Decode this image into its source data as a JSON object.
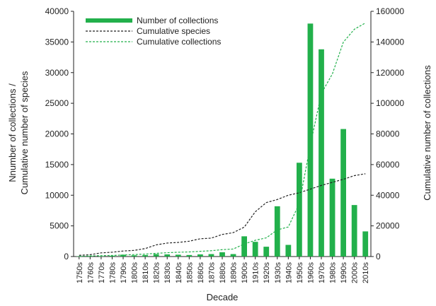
{
  "chart_data": {
    "type": "bar",
    "categories": [
      "1750s",
      "1760s",
      "1770s",
      "1780s",
      "1790s",
      "1800s",
      "1810s",
      "1820s",
      "1830s",
      "1840s",
      "1850s",
      "1860s",
      "1870s",
      "1880s",
      "1890s",
      "1900s",
      "1910s",
      "1920s",
      "1930s",
      "1940s",
      "1950s",
      "1960s",
      "1970s",
      "1980s",
      "1990s",
      "2000s",
      "2010s"
    ],
    "xlabel": "Decade",
    "ylabel": "Nnumber of collections  /  Cumulative  number of species",
    "ylabel_lines": [
      "Nnumber of collections  /",
      "Cumulative  number of species"
    ],
    "y2label": "Cumulative  number of collections",
    "ylim": [
      0,
      40000
    ],
    "y2lim": [
      0,
      160000
    ],
    "yticks": [
      "0",
      "5000",
      "10000",
      "15000",
      "20000",
      "25000",
      "30000",
      "35000",
      "40000"
    ],
    "y2ticks": [
      "0",
      "20000",
      "40000",
      "60000",
      "80000",
      "100000",
      "120000",
      "140000",
      "160000"
    ],
    "legend_position": "top-left",
    "series": [
      {
        "name": "Number of collections",
        "kind": "bar",
        "axis": "left",
        "color": "#22b04b",
        "values": [
          50,
          80,
          60,
          120,
          300,
          200,
          250,
          400,
          350,
          300,
          250,
          350,
          400,
          700,
          400,
          3300,
          2400,
          1600,
          8200,
          1900,
          15300,
          38000,
          33800,
          12700,
          20800,
          8400,
          4100
        ]
      },
      {
        "name": "Cumulative species",
        "kind": "line",
        "style": "dashed",
        "axis": "left",
        "color": "#222222",
        "values": [
          200,
          300,
          600,
          700,
          900,
          1000,
          1300,
          1900,
          2200,
          2300,
          2500,
          2900,
          3000,
          3600,
          3900,
          4800,
          7300,
          8800,
          9300,
          10000,
          10400,
          11000,
          11600,
          12100,
          12600,
          13200,
          13500
        ]
      },
      {
        "name": "Cumulative collections",
        "kind": "line",
        "style": "dashed",
        "axis": "right",
        "color": "#22b04b",
        "values": [
          100,
          400,
          600,
          700,
          1000,
          1300,
          1600,
          2100,
          2500,
          2800,
          3000,
          3400,
          3800,
          4500,
          4900,
          8200,
          10600,
          12200,
          17400,
          19300,
          34600,
          72600,
          106400,
          119100,
          139900,
          148300,
          152400
        ]
      }
    ]
  }
}
